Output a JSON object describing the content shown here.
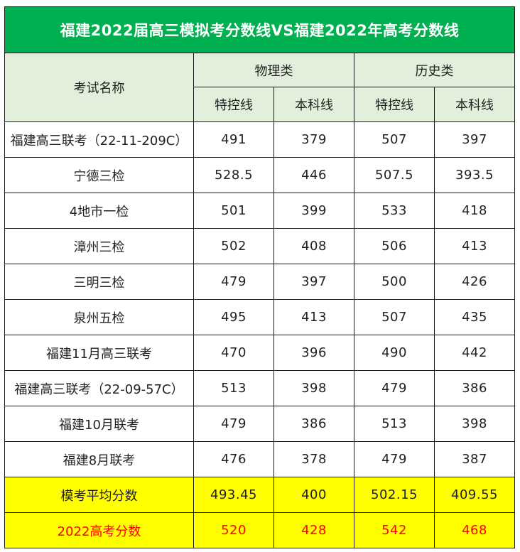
{
  "title": "福建2022届高三模拟考分数线VS福建2022年高考分数线",
  "header": {
    "exam_name": "考试名称",
    "physics": "物理类",
    "history": "历史类",
    "special": "特控线",
    "undergrad": "本科线"
  },
  "rows": [
    {
      "name": "福建高三联考（22-11-209C）",
      "p_special": "491",
      "p_under": "379",
      "h_special": "507",
      "h_under": "397"
    },
    {
      "name": "宁德三检",
      "p_special": "528.5",
      "p_under": "446",
      "h_special": "507.5",
      "h_under": "393.5"
    },
    {
      "name": "4地市一检",
      "p_special": "501",
      "p_under": "399",
      "h_special": "533",
      "h_under": "418"
    },
    {
      "name": "漳州三检",
      "p_special": "502",
      "p_under": "408",
      "h_special": "506",
      "h_under": "413"
    },
    {
      "name": "三明三检",
      "p_special": "479",
      "p_under": "397",
      "h_special": "500",
      "h_under": "426"
    },
    {
      "name": "泉州五检",
      "p_special": "495",
      "p_under": "413",
      "h_special": "507",
      "h_under": "435"
    },
    {
      "name": "福建11月高三联考",
      "p_special": "470",
      "p_under": "396",
      "h_special": "490",
      "h_under": "442"
    },
    {
      "name": "福建高三联考（22-09-57C）",
      "p_special": "513",
      "p_under": "398",
      "h_special": "479",
      "h_under": "386"
    },
    {
      "name": "福建10月联考",
      "p_special": "479",
      "p_under": "386",
      "h_special": "513",
      "h_under": "398"
    },
    {
      "name": "福建8月联考",
      "p_special": "476",
      "p_under": "378",
      "h_special": "479",
      "h_under": "387"
    }
  ],
  "average": {
    "name": "模考平均分数",
    "p_special": "493.45",
    "p_under": "400",
    "h_special": "502.15",
    "h_under": "409.55"
  },
  "gaokao": {
    "name": "2022高考分数",
    "p_special": "520",
    "p_under": "428",
    "h_special": "542",
    "h_under": "468"
  },
  "colors": {
    "title_bg": "#00b050",
    "header_bg": "#e2efda",
    "highlight_bg": "#ffff00",
    "gaokao_text": "#ff0000"
  }
}
